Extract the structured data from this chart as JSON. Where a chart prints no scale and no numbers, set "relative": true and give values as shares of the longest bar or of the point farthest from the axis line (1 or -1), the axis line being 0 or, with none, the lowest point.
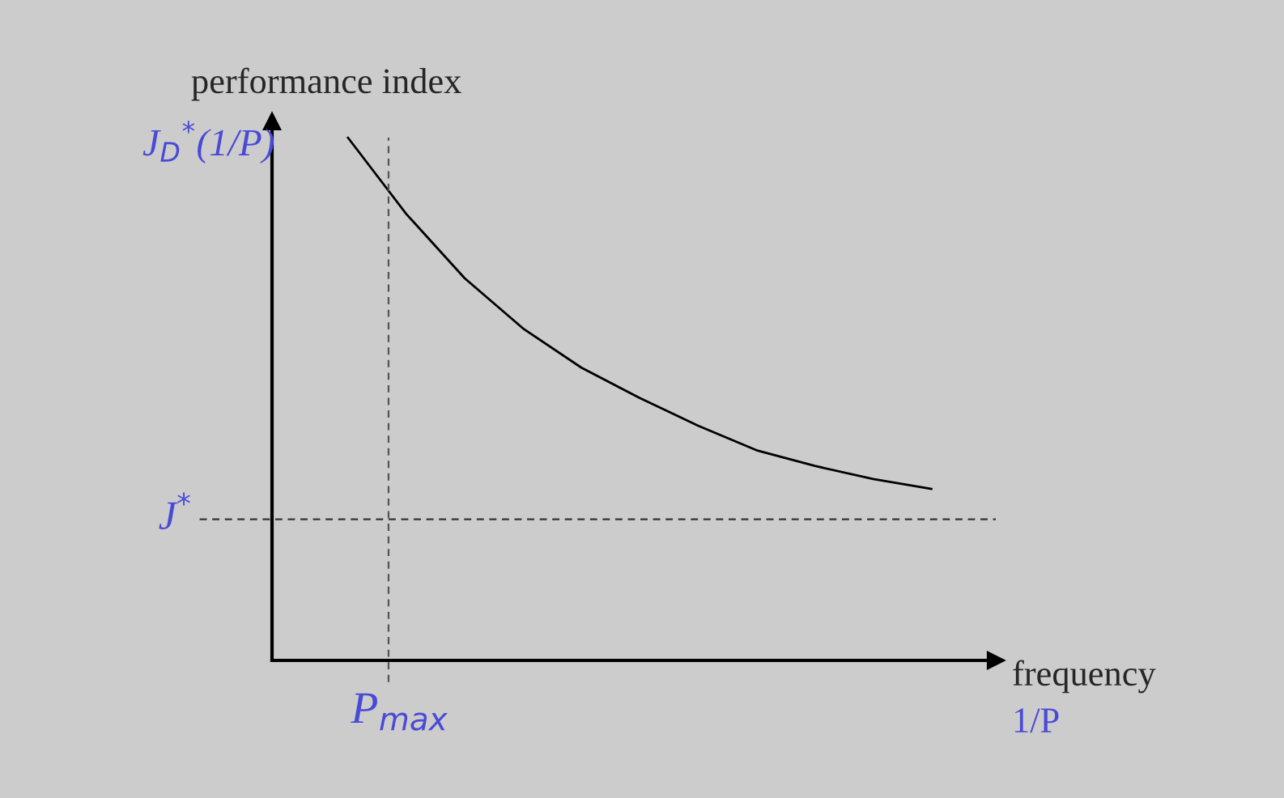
{
  "chart_data": {
    "type": "line",
    "relative": true,
    "xlabel": "frequency",
    "ylabel": "performance index",
    "annotations": [
      "1/P",
      "J$_{D}$$^{*}$(1/P)",
      "P$_{max}$"
    ],
    "categories": [
      null,
      null,
      null,
      null,
      null,
      null,
      null,
      null,
      null,
      null,
      null
    ],
    "series": [
      {
        "color": "#000000",
        "values": [
          1.0,
          0.854,
          0.731,
          0.635,
          0.56,
          0.502,
          0.449,
          0.402,
          0.372,
          0.347,
          0.328
        ]
      }
    ],
    "ref_lines": [
      {
        "axis": "y",
        "value": 0.27,
        "label": "J$^{*}$",
        "color": "#333333",
        "line_style": "dashed"
      }
    ],
    "legend": false
  }
}
